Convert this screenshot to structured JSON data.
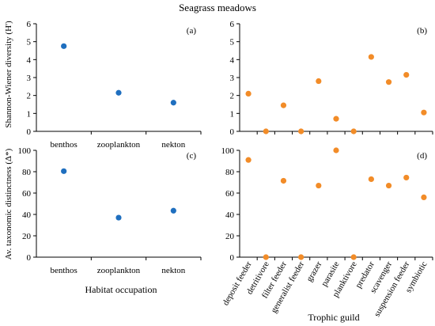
{
  "title": "Seagrass meadows",
  "colors": {
    "habitat": "#1f6fbf",
    "trophic": "#f28c28"
  },
  "chart_data": [
    {
      "id": "a",
      "panel": "(a)",
      "type": "scatter",
      "categories": [
        "benthos",
        "zooplankton",
        "nekton"
      ],
      "values": [
        4.75,
        2.15,
        1.6
      ],
      "ylabel": "Shannon-Wiener diversity (H')",
      "ylim": [
        0,
        6
      ],
      "yticks": [
        0,
        1,
        2,
        3,
        4,
        5,
        6
      ]
    },
    {
      "id": "b",
      "panel": "(b)",
      "type": "scatter",
      "categories": [
        "deposit feeder",
        "detritivore",
        "filter feeder",
        "generalist feeder",
        "grazer",
        "parasite",
        "planktivore",
        "predator",
        "scavenger",
        "suspension feeder",
        "symbiotic"
      ],
      "values": [
        2.1,
        0,
        1.45,
        0,
        2.8,
        0.7,
        0,
        4.15,
        2.75,
        3.15,
        1.05
      ],
      "ylim": [
        0,
        6
      ],
      "yticks": [
        0,
        1,
        2,
        3,
        4,
        5,
        6
      ]
    },
    {
      "id": "c",
      "panel": "(c)",
      "type": "scatter",
      "categories": [
        "benthos",
        "zooplankton",
        "nekton"
      ],
      "values": [
        80.5,
        37,
        43.5
      ],
      "ylabel": "Av. taxonomic distinctness (Δ*)",
      "xlabel": "Habitat occupation",
      "ylim": [
        0,
        100
      ],
      "yticks": [
        0,
        20,
        40,
        60,
        80,
        100
      ]
    },
    {
      "id": "d",
      "panel": "(d)",
      "type": "scatter",
      "categories": [
        "deposit feeder",
        "detritivore",
        "filter feeder",
        "generalist feeder",
        "grazer",
        "parasite",
        "planktivore",
        "predator",
        "scavenger",
        "suspension feeder",
        "symbiotic"
      ],
      "values": [
        91,
        0,
        71.5,
        0,
        67,
        100,
        0,
        73,
        67,
        74.5,
        56
      ],
      "xlabel": "Trophic guild",
      "ylim": [
        0,
        100
      ],
      "yticks": [
        0,
        20,
        40,
        60,
        80,
        100
      ]
    }
  ]
}
